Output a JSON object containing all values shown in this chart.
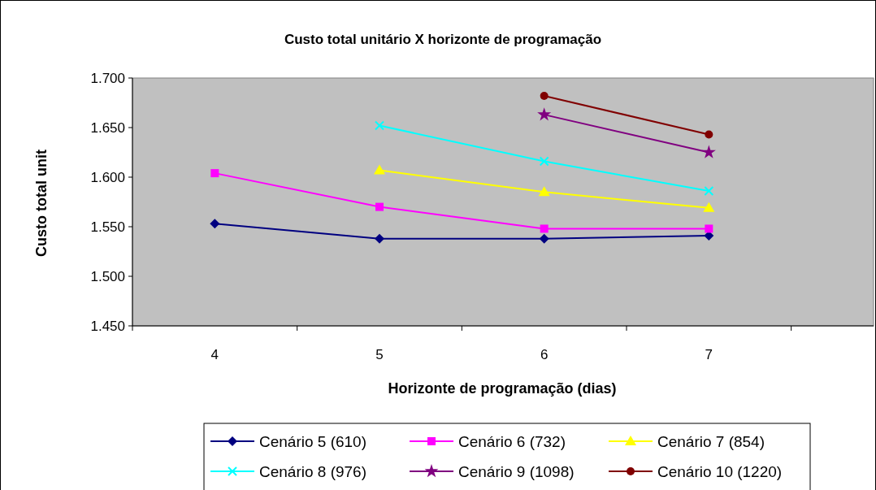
{
  "chart_data": {
    "type": "line",
    "title": "Custo total unitário X horizonte de programação",
    "xlabel": "Horizonte de programação (dias)",
    "ylabel": "Custo total unit",
    "categories": [
      "4",
      "5",
      "6",
      "7"
    ],
    "ylim": [
      1.45,
      1.7
    ],
    "yticks": [
      {
        "value": 1.45,
        "label": "1.450"
      },
      {
        "value": 1.5,
        "label": "1.500"
      },
      {
        "value": 1.55,
        "label": "1.550"
      },
      {
        "value": 1.6,
        "label": "1.600"
      },
      {
        "value": 1.65,
        "label": "1.650"
      },
      {
        "value": 1.7,
        "label": "1.700"
      }
    ],
    "grid": false,
    "legend": "bottom",
    "series": [
      {
        "name": "Cenário 5 (610)",
        "color": "#000080",
        "marker": "diamond",
        "values": [
          1.553,
          1.538,
          1.538,
          1.541
        ]
      },
      {
        "name": "Cenário 6 (732)",
        "color": "#ff00ff",
        "marker": "square",
        "values": [
          1.604,
          1.57,
          1.548,
          1.548
        ]
      },
      {
        "name": "Cenário 7 (854)",
        "color": "#ffff00",
        "marker": "triangle",
        "values": [
          null,
          1.607,
          1.585,
          1.569
        ]
      },
      {
        "name": "Cenário 8 (976)",
        "color": "#00ffff",
        "marker": "cross",
        "values": [
          null,
          1.652,
          1.616,
          1.586
        ]
      },
      {
        "name": "Cenário 9 (1098)",
        "color": "#800080",
        "marker": "star",
        "values": [
          null,
          null,
          1.663,
          1.625
        ]
      },
      {
        "name": "Cenário 10 (1220)",
        "color": "#800000",
        "marker": "circle",
        "values": [
          null,
          null,
          1.682,
          1.643
        ]
      }
    ]
  }
}
